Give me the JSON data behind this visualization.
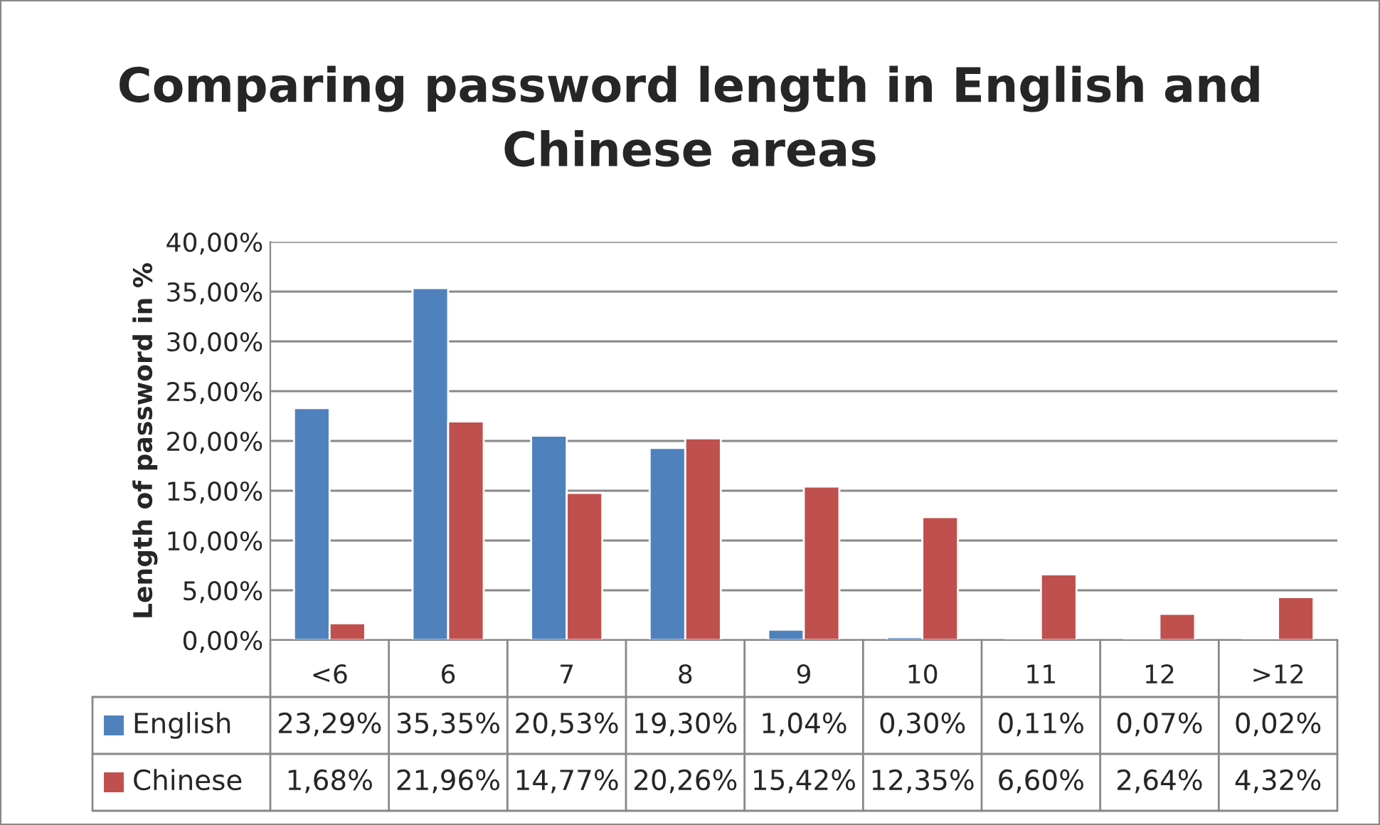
{
  "chart_data": {
    "type": "bar",
    "title": "Comparing password length in English and\nChinese areas",
    "ylabel": "Length of password in %",
    "categories": [
      "<6",
      "6",
      "7",
      "8",
      "9",
      "10",
      "11",
      "12",
      ">12"
    ],
    "series": [
      {
        "name": "English",
        "color": "#4f81bd",
        "values": [
          23.29,
          35.35,
          20.53,
          19.3,
          1.04,
          0.3,
          0.11,
          0.07,
          0.02
        ],
        "value_labels": [
          "23,29%",
          "35,35%",
          "20,53%",
          "19,30%",
          "1,04%",
          "0,30%",
          "0,11%",
          "0,07%",
          "0,02%"
        ]
      },
      {
        "name": "Chinese",
        "color": "#c0504d",
        "values": [
          1.68,
          21.96,
          14.77,
          20.26,
          15.42,
          12.35,
          6.6,
          2.64,
          4.32
        ],
        "value_labels": [
          "1,68%",
          "21,96%",
          "14,77%",
          "20,26%",
          "15,42%",
          "12,35%",
          "6,60%",
          "2,64%",
          "4,32%"
        ]
      }
    ],
    "ylim": [
      0,
      40
    ],
    "yticks": [
      {
        "value": 0,
        "label": "0,00%"
      },
      {
        "value": 5,
        "label": "5,00%"
      },
      {
        "value": 10,
        "label": "10,00%"
      },
      {
        "value": 15,
        "label": "15,00%"
      },
      {
        "value": 20,
        "label": "20,00%"
      },
      {
        "value": 25,
        "label": "25,00%"
      },
      {
        "value": 30,
        "label": "30,00%"
      },
      {
        "value": 35,
        "label": "35,00%"
      },
      {
        "value": 40,
        "label": "40,00%"
      }
    ],
    "grid": "y",
    "legend": "bottom"
  }
}
